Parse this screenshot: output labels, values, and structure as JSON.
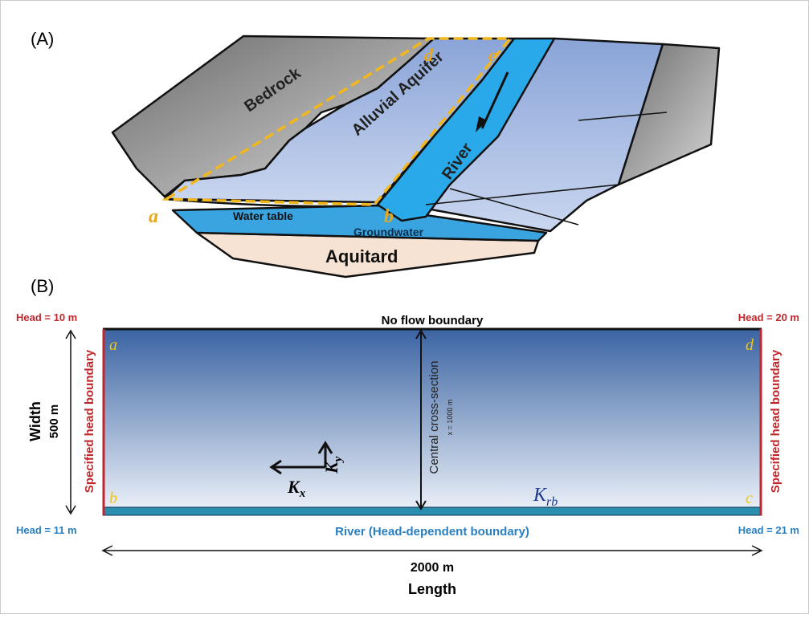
{
  "panel_a": {
    "label": "(A)",
    "regions": {
      "bedrock": "Bedrock",
      "aquifer": "Alluvial Aquifer",
      "river": "River",
      "water_table": "Water table",
      "groundwater": "Groundwater",
      "aquitard": "Aquitard"
    },
    "corners": {
      "a": "a",
      "b": "b",
      "c": "c",
      "d": "d"
    }
  },
  "panel_b": {
    "label": "(B)",
    "top_left_head": "Head = 10 m",
    "top_right_head": "Head = 20 m",
    "bottom_left_head": "Head = 11 m",
    "bottom_right_head": "Head = 21 m",
    "top_boundary": "No flow boundary",
    "left_boundary": "Specified head boundary",
    "right_boundary": "Specified head boundary",
    "bottom_boundary": "River (Head-dependent boundary)",
    "corners": {
      "a": "a",
      "b": "b",
      "c": "c",
      "d": "d"
    },
    "width_label": "Width",
    "width_value": "500 m",
    "length_value": "2000 m",
    "length_label": "Length",
    "section_label": "Central cross-section",
    "section_position": "x = 1000 m",
    "kx": {
      "symbol": "K",
      "subscript": "x"
    },
    "ky": {
      "symbol": "K",
      "subscript": "y"
    },
    "krb": {
      "symbol": "K",
      "subscript": "rb"
    }
  }
}
